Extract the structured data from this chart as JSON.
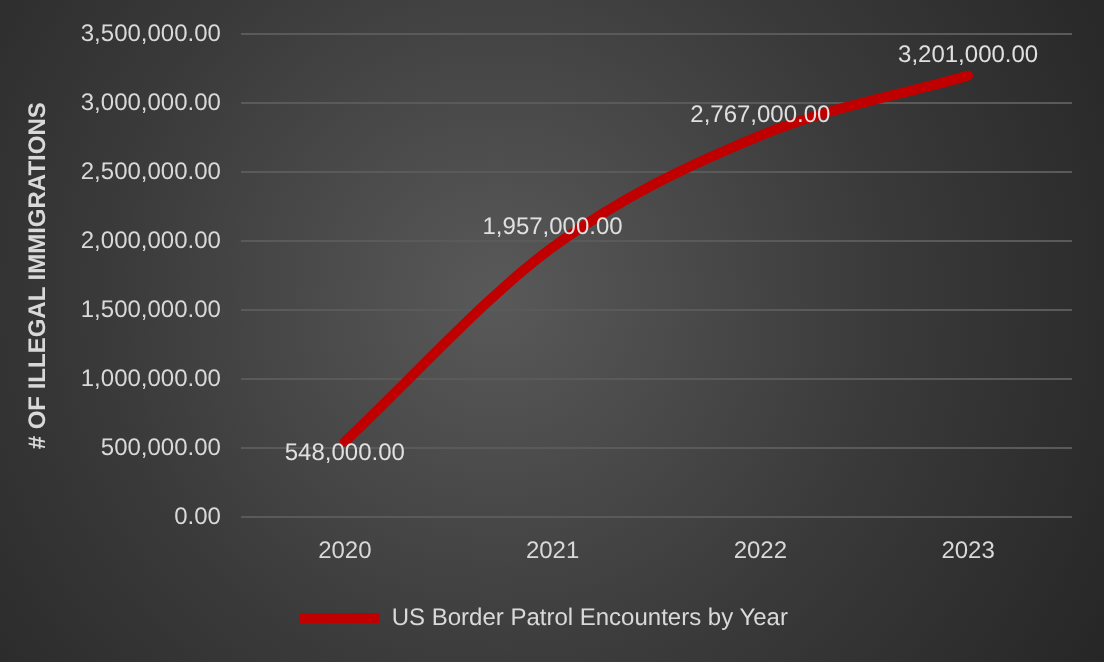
{
  "chart_data": {
    "type": "line",
    "ylabel": "# OF ILLEGAL IMMIGRATIONS",
    "categories": [
      "2020",
      "2021",
      "2022",
      "2023"
    ],
    "series": [
      {
        "name": "US Border Patrol Encounters by Year",
        "color": "#c00000",
        "values": [
          548000,
          1957000,
          2767000,
          3201000
        ],
        "value_labels": [
          "548,000.00",
          "1,957,000.00",
          "2,767,000.00",
          "3,201,000.00"
        ]
      }
    ],
    "ylim": [
      0,
      3500000
    ],
    "yticks": [
      {
        "value": 0,
        "label": "0.00"
      },
      {
        "value": 500000,
        "label": "500,000.00"
      },
      {
        "value": 1000000,
        "label": "1,000,000.00"
      },
      {
        "value": 1500000,
        "label": "1,500,000.00"
      },
      {
        "value": 2000000,
        "label": "2,000,000.00"
      },
      {
        "value": 2500000,
        "label": "2,500,000.00"
      },
      {
        "value": 3000000,
        "label": "3,000,000.00"
      },
      {
        "value": 3500000,
        "label": "3,500,000.00"
      }
    ],
    "grid": "y",
    "legend": "bottom",
    "marker": "none",
    "line_style": "solid"
  }
}
